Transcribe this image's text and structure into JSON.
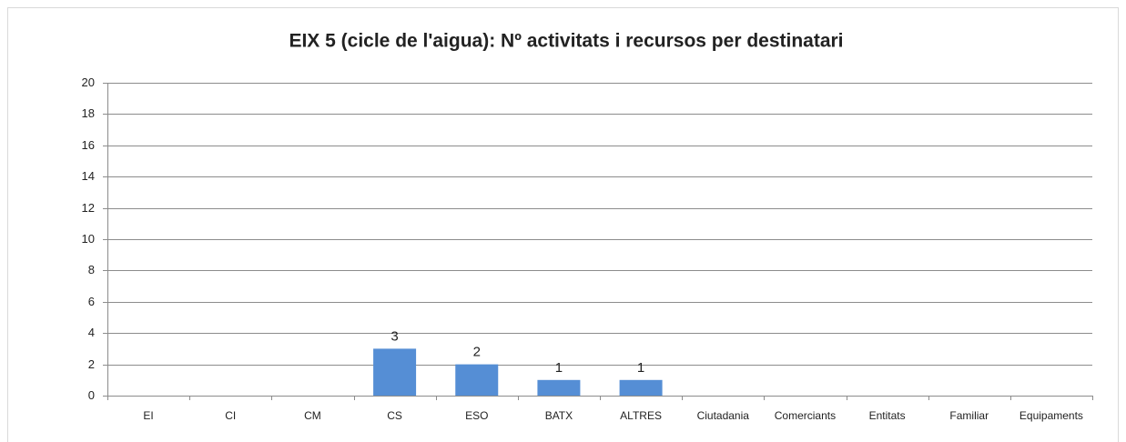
{
  "chart_data": {
    "type": "bar",
    "title": "EIX 5 (cicle de l'aigua): Nº activitats i recursos per destinatari",
    "categories": [
      "EI",
      "CI",
      "CM",
      "CS",
      "ESO",
      "BATX",
      "ALTRES",
      "Ciutadania",
      "Comerciants",
      "Entitats",
      "Familiar",
      "Equipaments"
    ],
    "values": [
      0,
      0,
      0,
      3,
      2,
      1,
      1,
      0,
      0,
      0,
      0,
      0
    ],
    "color": "#558ed5",
    "ylim": [
      0,
      20
    ],
    "yticks": [
      0,
      2,
      4,
      6,
      8,
      10,
      12,
      14,
      16,
      18,
      20
    ],
    "grid": true
  }
}
